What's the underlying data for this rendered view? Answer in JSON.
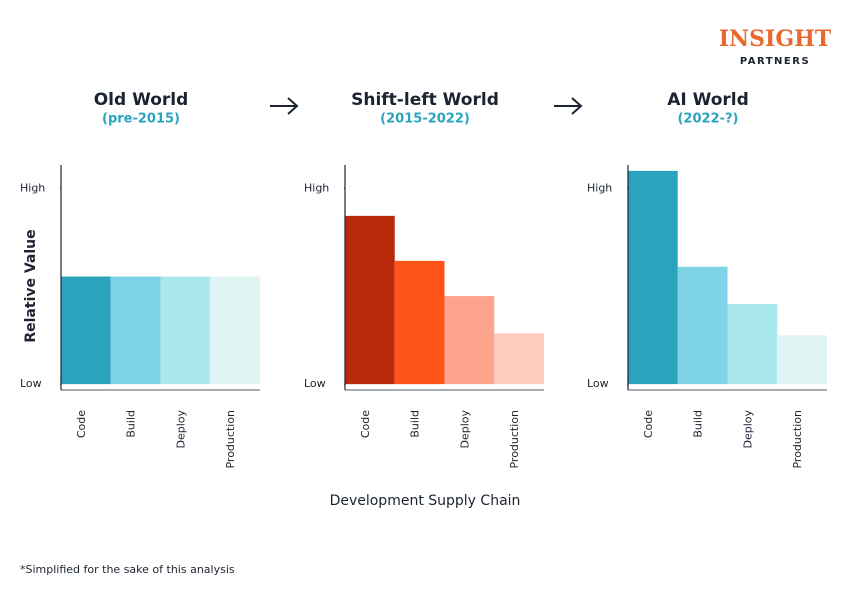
{
  "logo": {
    "name": "INSIGHT",
    "sub": "PARTNERS"
  },
  "y_label": "Relative Value",
  "x_label": "Development Supply Chain",
  "footnote": "*Simplified for the sake of this analysis",
  "chart_data": [
    {
      "type": "bar",
      "title": "Old World",
      "subtitle": "(pre-2015)",
      "categories": [
        "Code",
        "Build",
        "Deploy",
        "Production"
      ],
      "values": [
        55,
        55,
        55,
        55
      ],
      "colors": [
        "#2aa3bd",
        "#7fd3e6",
        "#a9e9ee",
        "#e0f4f3"
      ],
      "ylim": [
        -3,
        112
      ],
      "yticks": [
        {
          "value": 0,
          "label": "Low"
        },
        {
          "value": 100,
          "label": "High"
        }
      ]
    },
    {
      "type": "bar",
      "title": "Shift-left World",
      "subtitle": "(2015-2022)",
      "categories": [
        "Code",
        "Build",
        "Deploy",
        "Production"
      ],
      "values": [
        86,
        63,
        45,
        26
      ],
      "colors": [
        "#b9290c",
        "#ff5419",
        "#ffa48c",
        "#ffcbbe"
      ],
      "ylim": [
        -3,
        112
      ],
      "yticks": [
        {
          "value": 0,
          "label": "Low"
        },
        {
          "value": 100,
          "label": "High"
        }
      ]
    },
    {
      "type": "bar",
      "title": "AI World",
      "subtitle": "(2022-?)",
      "categories": [
        "Code",
        "Build",
        "Deploy",
        "Production"
      ],
      "values": [
        109,
        60,
        41,
        25
      ],
      "colors": [
        "#2aa3bd",
        "#7fd3e6",
        "#a9e9ee",
        "#e0f4f3"
      ],
      "ylim": [
        -3,
        112
      ],
      "yticks": [
        {
          "value": 0,
          "label": "Low"
        },
        {
          "value": 100,
          "label": "High"
        }
      ]
    }
  ]
}
